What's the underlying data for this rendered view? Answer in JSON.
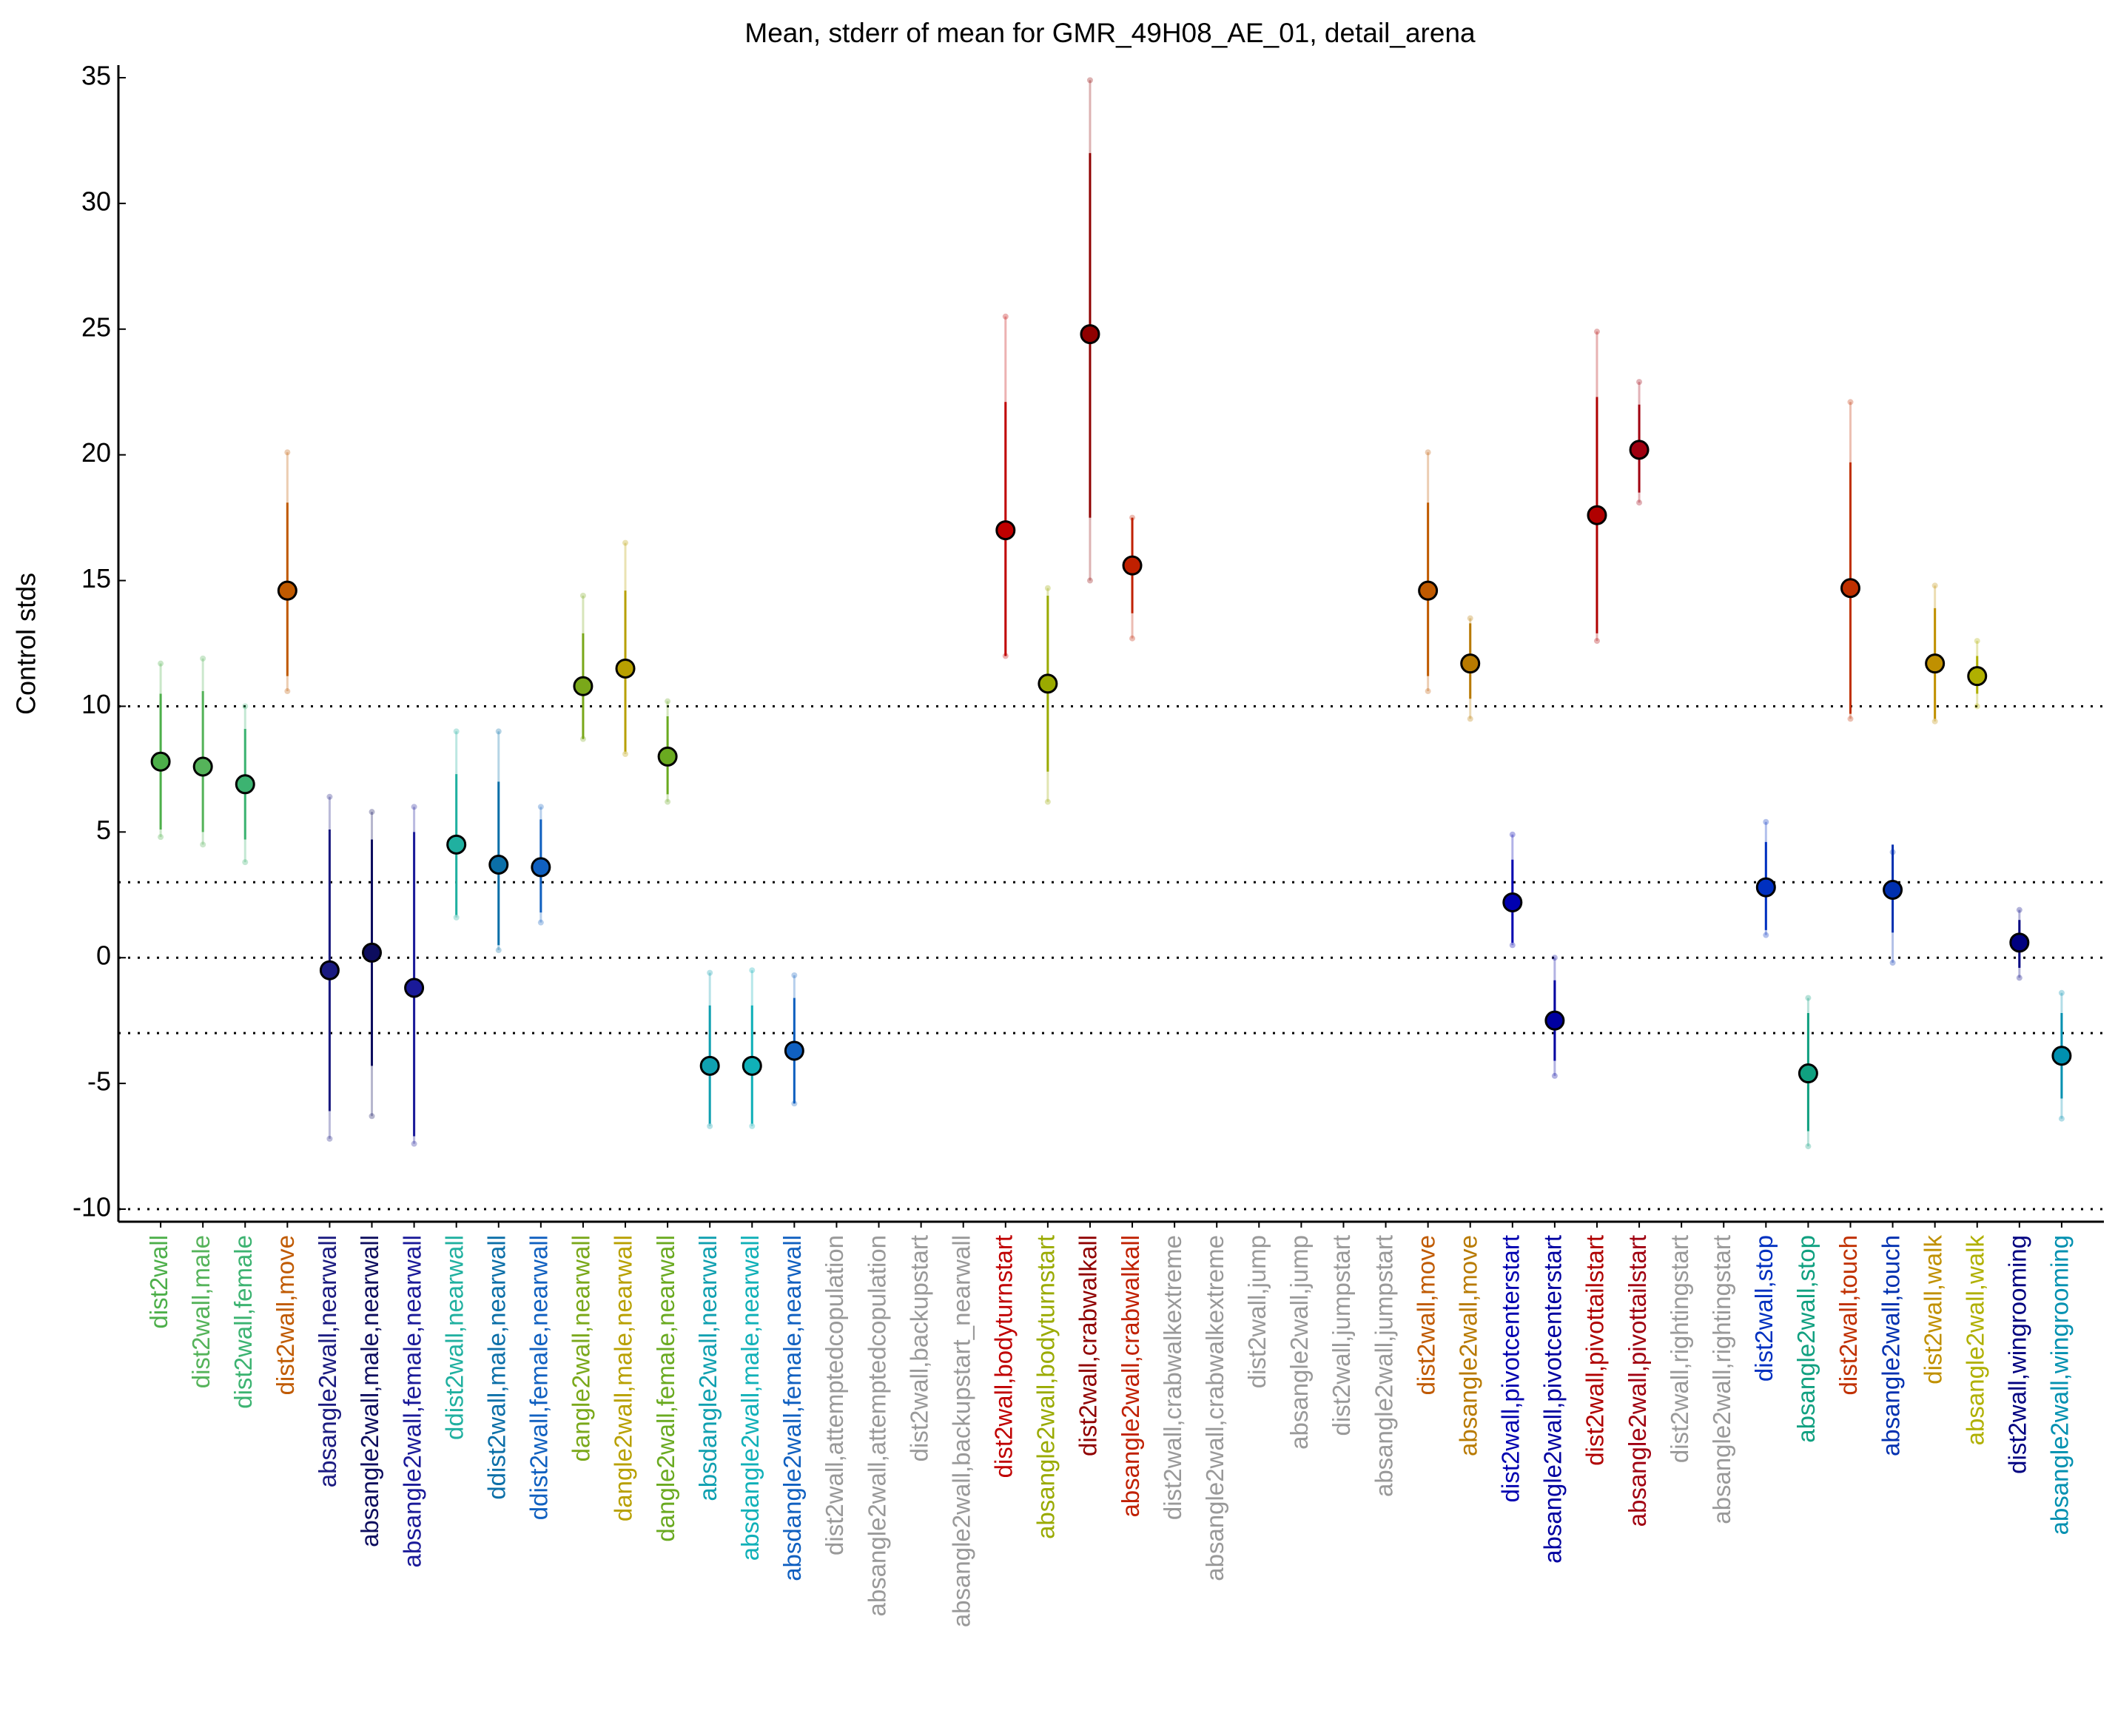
{
  "chart_data": {
    "type": "errorbar",
    "title": "Mean, stderr of mean for GMR_49H08_AE_01, detail_arena",
    "ylabel": "Control stds",
    "categories": [
      "dist2wall",
      "dist2wall,male",
      "dist2wall,female",
      "dist2wall,move",
      "absangle2wall,nearwall",
      "absangle2wall,male,nearwall",
      "absangle2wall,female,nearwall",
      "ddist2wall,nearwall",
      "ddist2wall,male,nearwall",
      "ddist2wall,female,nearwall",
      "dangle2wall,nearwall",
      "dangle2wall,male,nearwall",
      "dangle2wall,female,nearwall",
      "absdangle2wall,nearwall",
      "absdangle2wall,male,nearwall",
      "absdangle2wall,female,nearwall",
      "dist2wall,attemptedcopulation",
      "absangle2wall,attemptedcopulation",
      "dist2wall,backupstart",
      "absangle2wall,backupstart_nearwall",
      "dist2wall,bodyturnstart",
      "absangle2wall,bodyturnstart",
      "dist2wall,crabwalkall",
      "absangle2wall,crabwalkall",
      "dist2wall,crabwalkextreme",
      "absangle2wall,crabwalkextreme",
      "dist2wall,jump",
      "absangle2wall,jump",
      "dist2wall,jumpstart",
      "absangle2wall,jumpstart",
      "dist2wall,move",
      "absangle2wall,move",
      "dist2wall,pivotcenterstart",
      "absangle2wall,pivotcenterstart",
      "dist2wall,pivottailstart",
      "absangle2wall,pivottailstart",
      "dist2wall,rightingstart",
      "absangle2wall,rightingstart",
      "dist2wall,stop",
      "absangle2wall,stop",
      "dist2wall,touch",
      "absangle2wall,touch",
      "dist2wall,walk",
      "absangle2wall,walk",
      "dist2wall,wingrooming",
      "absangle2wall,wingrooming"
    ],
    "values": [
      7.8,
      7.6,
      6.9,
      14.6,
      -0.5,
      0.2,
      -1.2,
      4.5,
      3.7,
      3.6,
      10.8,
      11.5,
      8.0,
      -4.3,
      -4.3,
      -3.7,
      null,
      null,
      null,
      null,
      17.0,
      10.9,
      24.8,
      15.6,
      null,
      null,
      null,
      null,
      null,
      null,
      14.6,
      11.7,
      2.2,
      -2.5,
      17.6,
      20.2,
      null,
      null,
      2.8,
      -4.6,
      14.7,
      2.7,
      11.7,
      11.2,
      0.6,
      -3.9
    ],
    "err_lo": [
      5.1,
      5.0,
      4.7,
      11.2,
      -6.1,
      -4.3,
      -7.1,
      1.7,
      0.5,
      1.8,
      8.7,
      8.2,
      6.5,
      -6.6,
      -6.6,
      -5.8,
      null,
      null,
      null,
      null,
      12.0,
      7.4,
      17.5,
      13.7,
      null,
      null,
      null,
      null,
      null,
      null,
      11.2,
      10.3,
      0.6,
      -4.1,
      12.9,
      18.5,
      null,
      null,
      1.1,
      -6.9,
      9.7,
      1.0,
      9.5,
      10.5,
      -0.4,
      -5.6
    ],
    "err_hi": [
      10.5,
      10.6,
      9.1,
      18.1,
      5.1,
      4.7,
      5.0,
      7.3,
      7.0,
      5.5,
      12.9,
      14.6,
      9.6,
      -1.9,
      -1.9,
      -1.6,
      null,
      null,
      null,
      null,
      22.1,
      14.4,
      32.0,
      17.5,
      null,
      null,
      null,
      null,
      null,
      null,
      18.1,
      13.3,
      3.9,
      -0.9,
      22.3,
      22.0,
      null,
      null,
      4.6,
      -2.2,
      19.7,
      4.5,
      13.9,
      12.0,
      1.5,
      -2.2
    ],
    "range_lo": [
      4.8,
      4.5,
      3.8,
      10.6,
      -7.2,
      -6.3,
      -7.4,
      1.6,
      0.3,
      1.4,
      8.7,
      8.1,
      6.2,
      -6.7,
      -6.7,
      -5.8,
      null,
      null,
      null,
      null,
      12.0,
      6.2,
      15.0,
      12.7,
      null,
      null,
      null,
      null,
      null,
      null,
      10.6,
      9.5,
      0.5,
      -4.7,
      12.6,
      18.1,
      null,
      null,
      0.9,
      -7.5,
      9.5,
      -0.2,
      9.4,
      10.0,
      -0.8,
      -6.4
    ],
    "range_hi": [
      11.7,
      11.9,
      10.0,
      20.1,
      6.4,
      5.8,
      6.0,
      9.0,
      9.0,
      6.0,
      14.4,
      16.5,
      10.2,
      -0.6,
      -0.5,
      -0.7,
      null,
      null,
      null,
      null,
      25.5,
      14.7,
      34.9,
      17.5,
      null,
      null,
      null,
      null,
      null,
      null,
      20.1,
      13.5,
      4.9,
      0.0,
      24.9,
      22.9,
      null,
      null,
      5.4,
      -1.6,
      22.1,
      4.2,
      14.8,
      12.6,
      1.9,
      -1.4
    ],
    "colors": [
      "#4daf4a",
      "#55b35a",
      "#3cb371",
      "#c05a00",
      "#1a1a80",
      "#0d0d5e",
      "#1a1a99",
      "#20b0a0",
      "#0b6fa8",
      "#1060c0",
      "#7aa81a",
      "#b8a000",
      "#6aaa20",
      "#10a0b0",
      "#10b0b8",
      "#1060c0",
      "#999999",
      "#999999",
      "#999999",
      "#999999",
      "#c00000",
      "#9aaa00",
      "#900000",
      "#c02000",
      "#999999",
      "#999999",
      "#999999",
      "#999999",
      "#999999",
      "#999999",
      "#c05a00",
      "#b87a00",
      "#0000b0",
      "#0000a0",
      "#b00000",
      "#a00010",
      "#999999",
      "#999999",
      "#0030c0",
      "#10a080",
      "#c03000",
      "#0030b0",
      "#c09000",
      "#b0b000",
      "#000080",
      "#0090b0"
    ],
    "ylim": [
      -10.5,
      35.5
    ],
    "yticks": [
      -10,
      -5,
      0,
      5,
      10,
      15,
      20,
      25,
      30,
      35
    ],
    "hlines": [
      10,
      3,
      0,
      -3,
      -10
    ]
  }
}
